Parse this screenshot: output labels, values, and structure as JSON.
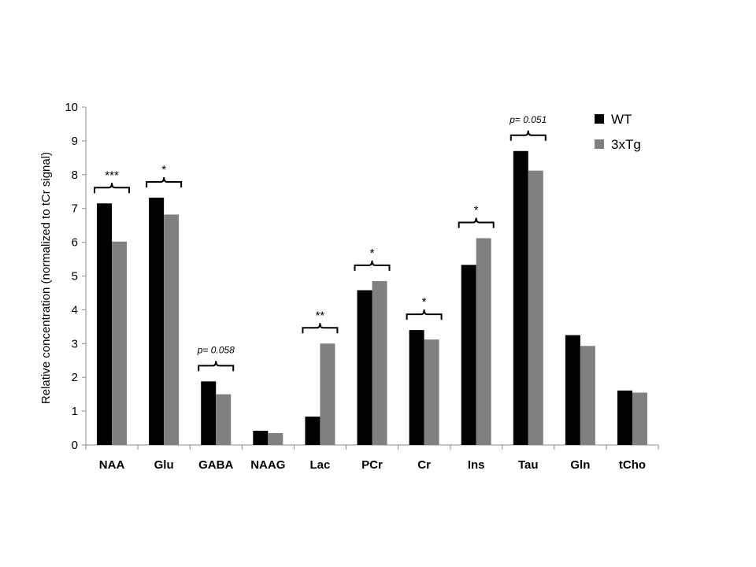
{
  "chart_data": {
    "type": "bar",
    "title": "",
    "xlabel": "",
    "ylabel": "Relative concentration (normalized to tCr signal)",
    "ylim": [
      0,
      10
    ],
    "yticks": [
      0,
      1,
      2,
      3,
      4,
      5,
      6,
      7,
      8,
      9,
      10
    ],
    "categories": [
      "NAA",
      "Glu",
      "GABA",
      "NAAG",
      "Lac",
      "PCr",
      "Cr",
      "Ins",
      "Tau",
      "Gln",
      "tCho"
    ],
    "series": [
      {
        "name": "WT",
        "color": "#000000",
        "values": [
          7.15,
          7.32,
          1.88,
          0.42,
          0.84,
          4.58,
          3.4,
          5.33,
          8.7,
          3.25,
          1.61
        ]
      },
      {
        "name": "3xTg",
        "color": "#808080",
        "values": [
          6.02,
          6.82,
          1.5,
          0.35,
          3.0,
          4.85,
          3.12,
          6.12,
          8.12,
          2.93,
          1.55
        ]
      }
    ],
    "legend": {
      "position": "top-right",
      "entries": [
        "WT",
        "3xTg"
      ]
    },
    "grid": false,
    "annotations": [
      {
        "category": "NAA",
        "text": "***",
        "style": "star"
      },
      {
        "category": "Glu",
        "text": "*",
        "style": "star"
      },
      {
        "category": "GABA",
        "text": "p= 0.058",
        "style": "pval"
      },
      {
        "category": "Lac",
        "text": "**",
        "style": "star"
      },
      {
        "category": "PCr",
        "text": "*",
        "style": "star"
      },
      {
        "category": "Cr",
        "text": "*",
        "style": "star"
      },
      {
        "category": "Ins",
        "text": "*",
        "style": "star"
      },
      {
        "category": "Tau",
        "text": "p= 0.051",
        "style": "pval"
      }
    ]
  }
}
